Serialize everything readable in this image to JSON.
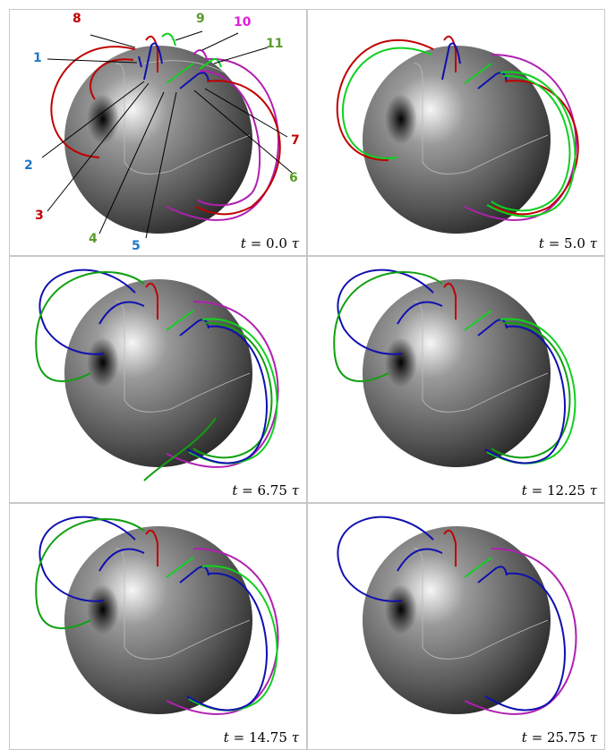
{
  "panels": [
    {
      "eq": "=",
      "value": "0.0",
      "unit": "τ"
    },
    {
      "eq": "=",
      "value": "5.0",
      "unit": "τ"
    },
    {
      "eq": "=",
      "value": "6.75",
      "unit": "τ"
    },
    {
      "eq": "=",
      "value": "12.25",
      "unit": "τ"
    },
    {
      "eq": "=",
      "value": "14.75",
      "unit": "τ"
    },
    {
      "eq": "=",
      "value": "25.75",
      "unit": "τ"
    }
  ],
  "time_symbol": "t",
  "loop_labels": [
    {
      "text": "1",
      "color": "#1f77c8"
    },
    {
      "text": "2",
      "color": "#1f77c8"
    },
    {
      "text": "3",
      "color": "#c00000"
    },
    {
      "text": "4",
      "color": "#5a9a2a"
    },
    {
      "text": "5",
      "color": "#1f77c8"
    },
    {
      "text": "6",
      "color": "#5a9a2a"
    },
    {
      "text": "7",
      "color": "#c00000"
    },
    {
      "text": "8",
      "color": "#c00000"
    },
    {
      "text": "9",
      "color": "#5a9a2a"
    },
    {
      "text": "10",
      "color": "#e020e0"
    },
    {
      "text": "11",
      "color": "#5a9a2a"
    }
  ],
  "colors": {
    "blue_loop": "#1010b0",
    "red_loop": "#c00000",
    "green_loop": "#10d020",
    "dark_green_loop": "#10a010",
    "magenta_loop": "#b020b0",
    "sphere_light": "#f4f4f4",
    "sphere_dark": "#151515"
  }
}
